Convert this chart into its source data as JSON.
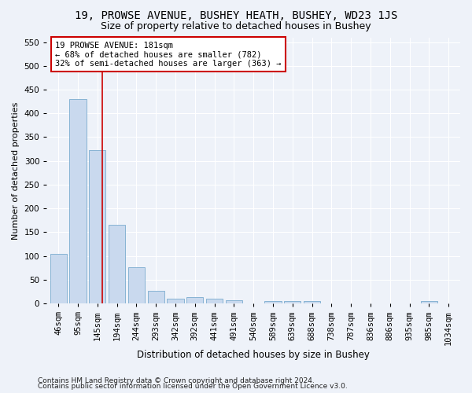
{
  "title": "19, PROWSE AVENUE, BUSHEY HEATH, BUSHEY, WD23 1JS",
  "subtitle": "Size of property relative to detached houses in Bushey",
  "xlabel": "Distribution of detached houses by size in Bushey",
  "ylabel": "Number of detached properties",
  "footnote1": "Contains HM Land Registry data © Crown copyright and database right 2024.",
  "footnote2": "Contains public sector information licensed under the Open Government Licence v3.0.",
  "bar_labels": [
    "46sqm",
    "95sqm",
    "145sqm",
    "194sqm",
    "244sqm",
    "293sqm",
    "342sqm",
    "392sqm",
    "441sqm",
    "491sqm",
    "540sqm",
    "589sqm",
    "639sqm",
    "688sqm",
    "738sqm",
    "787sqm",
    "836sqm",
    "886sqm",
    "935sqm",
    "985sqm",
    "1034sqm"
  ],
  "bar_values": [
    105,
    430,
    322,
    165,
    76,
    26,
    11,
    13,
    11,
    7,
    0,
    6,
    5,
    5,
    0,
    0,
    0,
    0,
    0,
    5,
    0
  ],
  "bar_color": "#c9d9ee",
  "bar_edge_color": "#7aabcf",
  "vline_color": "#cc0000",
  "annotation_line1": "19 PROWSE AVENUE: 181sqm",
  "annotation_line2": "← 68% of detached houses are smaller (782)",
  "annotation_line3": "32% of semi-detached houses are larger (363) →",
  "annotation_box_color": "#ffffff",
  "annotation_box_edge": "#cc0000",
  "ylim": [
    0,
    560
  ],
  "yticks": [
    0,
    50,
    100,
    150,
    200,
    250,
    300,
    350,
    400,
    450,
    500,
    550
  ],
  "background_color": "#eef2f9",
  "axes_background": "#eef2f9",
  "grid_color": "#ffffff",
  "title_fontsize": 10,
  "subtitle_fontsize": 9,
  "ylabel_fontsize": 8,
  "xlabel_fontsize": 8.5,
  "tick_fontsize": 7.5,
  "footnote_fontsize": 6.5
}
